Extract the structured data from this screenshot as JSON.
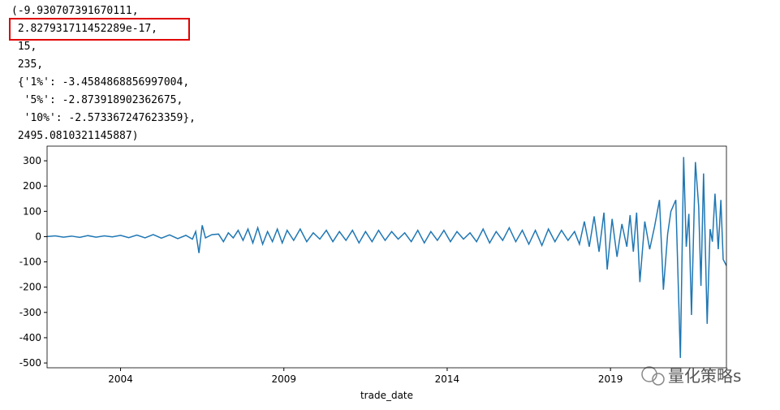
{
  "output_lines": [
    "(-9.930707391670111,",
    " 2.827931711452289e-17,",
    " 15,",
    " 235,",
    " {'1%': -3.4584868856997004,",
    "  '5%': -2.873918902362675,",
    "  '10%': -2.573367247623359},",
    " 2495.0810321145887)"
  ],
  "watermark": "量化策略s",
  "chart_data": {
    "type": "line",
    "xlabel": "trade_date",
    "x": [
      2001.75,
      2002,
      2002.25,
      2002.5,
      2002.75,
      2003,
      2003.25,
      2003.5,
      2003.75,
      2004,
      2004.25,
      2004.5,
      2004.75,
      2005,
      2005.25,
      2005.5,
      2005.75,
      2006,
      2006.2,
      2006.3,
      2006.4,
      2006.5,
      2006.6,
      2006.8,
      2007,
      2007.15,
      2007.3,
      2007.45,
      2007.6,
      2007.75,
      2007.9,
      2008.05,
      2008.2,
      2008.35,
      2008.5,
      2008.65,
      2008.8,
      2008.95,
      2009.1,
      2009.3,
      2009.5,
      2009.7,
      2009.9,
      2010.1,
      2010.3,
      2010.5,
      2010.7,
      2010.9,
      2011.1,
      2011.3,
      2011.5,
      2011.7,
      2011.9,
      2012.1,
      2012.3,
      2012.5,
      2012.7,
      2012.9,
      2013.1,
      2013.3,
      2013.5,
      2013.7,
      2013.9,
      2014.1,
      2014.3,
      2014.5,
      2014.7,
      2014.9,
      2015.1,
      2015.3,
      2015.5,
      2015.7,
      2015.9,
      2016.1,
      2016.3,
      2016.5,
      2016.7,
      2016.9,
      2017.1,
      2017.3,
      2017.5,
      2017.7,
      2017.9,
      2018.05,
      2018.2,
      2018.35,
      2018.5,
      2018.65,
      2018.8,
      2018.9,
      2019.05,
      2019.2,
      2019.35,
      2019.5,
      2019.6,
      2019.7,
      2019.8,
      2019.9,
      2020.05,
      2020.2,
      2020.35,
      2020.5,
      2020.62,
      2020.75,
      2020.85,
      2021.0,
      2021.14,
      2021.24,
      2021.32,
      2021.4,
      2021.48,
      2021.6,
      2021.7,
      2021.77,
      2021.85,
      2021.96,
      2022.05,
      2022.12,
      2022.2,
      2022.3,
      2022.38,
      2022.45,
      2022.55
    ],
    "series": [
      {
        "color": "#1f77b4",
        "values": [
          0,
          3,
          -2,
          2,
          -3,
          4,
          -2,
          3,
          -1,
          5,
          -4,
          6,
          -5,
          8,
          -6,
          7,
          -8,
          5,
          -10,
          20,
          -65,
          45,
          -5,
          8,
          10,
          -20,
          15,
          -5,
          25,
          -15,
          30,
          -25,
          35,
          -30,
          20,
          -20,
          30,
          -25,
          25,
          -15,
          30,
          -20,
          15,
          -10,
          25,
          -20,
          20,
          -15,
          25,
          -25,
          20,
          -20,
          25,
          -15,
          20,
          -10,
          15,
          -20,
          25,
          -25,
          20,
          -15,
          25,
          -20,
          20,
          -10,
          15,
          -20,
          30,
          -25,
          20,
          -15,
          35,
          -20,
          25,
          -30,
          25,
          -35,
          30,
          -20,
          25,
          -15,
          20,
          -30,
          60,
          -40,
          80,
          -60,
          95,
          -130,
          70,
          -80,
          50,
          -40,
          85,
          -60,
          95,
          -180,
          60,
          -50,
          40,
          145,
          -210,
          10,
          100,
          145,
          -480,
          315,
          -40,
          90,
          -310,
          295,
          120,
          -195,
          250,
          -345,
          30,
          -20,
          170,
          -50,
          145,
          -90,
          -115
        ]
      }
    ],
    "xlim": [
      2001.75,
      2022.55
    ],
    "xticks": [
      2004,
      2009,
      2014,
      2019
    ],
    "ylim": [
      -519,
      358
    ],
    "yticks": [
      300,
      200,
      100,
      0,
      -100,
      -200,
      -300,
      -400,
      -500
    ],
    "grid": false
  }
}
